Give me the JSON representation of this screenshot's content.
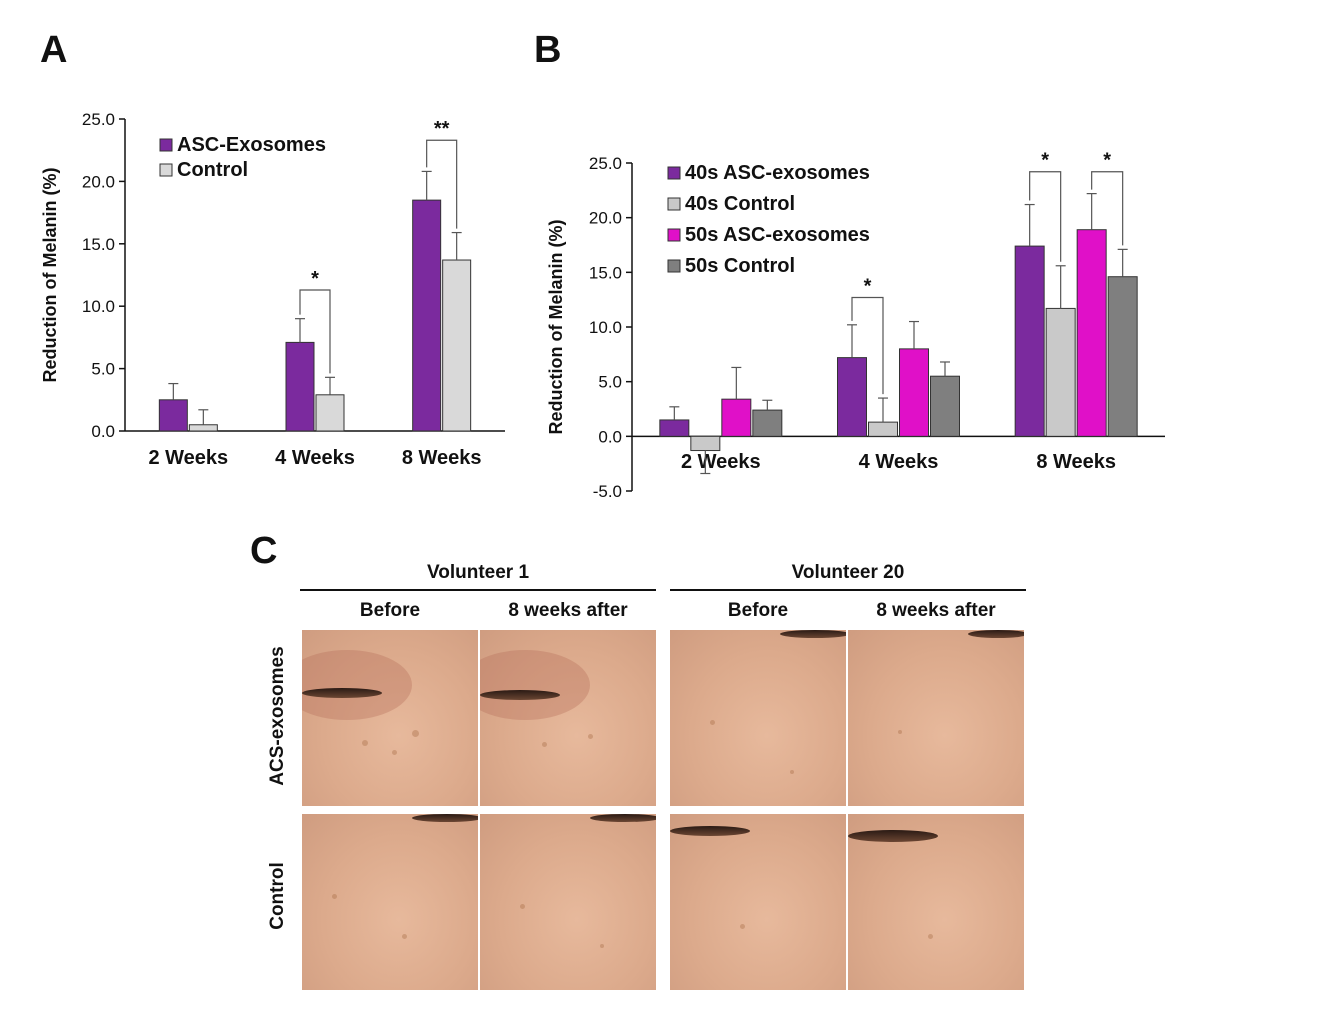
{
  "panels": {
    "a_label": "A",
    "b_label": "B",
    "c_label": "C"
  },
  "chart_data": [
    {
      "type": "bar",
      "panel": "A",
      "ylabel": "Reduction of Melanin (%)",
      "ylim": [
        0,
        25
      ],
      "yticks": [
        "0.0",
        "5.0",
        "10.0",
        "15.0",
        "20.0",
        "25.0"
      ],
      "categories": [
        "2 Weeks",
        "4 Weeks",
        "8 Weeks"
      ],
      "legend_position": "top-left",
      "series": [
        {
          "name": "ASC-Exosomes",
          "color": "#7B2A9E",
          "values": [
            2.5,
            7.1,
            18.5
          ],
          "errors": [
            1.3,
            1.9,
            2.3
          ]
        },
        {
          "name": "Control",
          "color": "#D9D9D9",
          "values": [
            0.5,
            2.9,
            13.7
          ],
          "errors": [
            1.2,
            1.4,
            2.2
          ]
        }
      ],
      "significance": [
        {
          "category_index": 1,
          "label": "*",
          "y": 11.3
        },
        {
          "category_index": 2,
          "label": "**",
          "y": 23.3
        }
      ]
    },
    {
      "type": "bar",
      "panel": "B",
      "ylabel": "Reduction of Melanin (%)",
      "ylim": [
        -5,
        25
      ],
      "yticks": [
        "-5.0",
        "0.0",
        "5.0",
        "10.0",
        "15.0",
        "20.0",
        "25.0"
      ],
      "categories": [
        "2 Weeks",
        "4 Weeks",
        "8 Weeks"
      ],
      "legend_position": "top-left",
      "series": [
        {
          "name": "40s ASC-exosomes",
          "color": "#7B2A9E",
          "values": [
            1.5,
            7.2,
            17.4
          ],
          "errors": [
            1.2,
            3.0,
            3.8
          ]
        },
        {
          "name": "40s Control",
          "color": "#C9C9C9",
          "values": [
            -1.3,
            1.3,
            11.7
          ],
          "errors": [
            2.1,
            2.2,
            3.9
          ]
        },
        {
          "name": "50s ASC-exosomes",
          "color": "#E010C8",
          "values": [
            3.4,
            8.0,
            18.9
          ],
          "errors": [
            2.9,
            2.5,
            3.3
          ]
        },
        {
          "name": "50s Control",
          "color": "#7F7F7F",
          "values": [
            2.4,
            5.5,
            14.6
          ],
          "errors": [
            0.9,
            1.3,
            2.5
          ]
        }
      ],
      "significance": [
        {
          "category_index": 1,
          "pair": [
            0,
            1
          ],
          "label": "*",
          "y": 12.7
        },
        {
          "category_index": 2,
          "pair": [
            0,
            1
          ],
          "label": "*",
          "y": 24.2
        },
        {
          "category_index": 2,
          "pair": [
            2,
            3
          ],
          "label": "*",
          "y": 24.2
        }
      ]
    }
  ],
  "panel_c": {
    "volunteers": [
      "Volunteer 1",
      "Volunteer 20"
    ],
    "columns": [
      "Before",
      "8 weeks after",
      "Before",
      "8 weeks after"
    ],
    "rows": [
      "ACS-exosomes",
      "Control"
    ]
  }
}
